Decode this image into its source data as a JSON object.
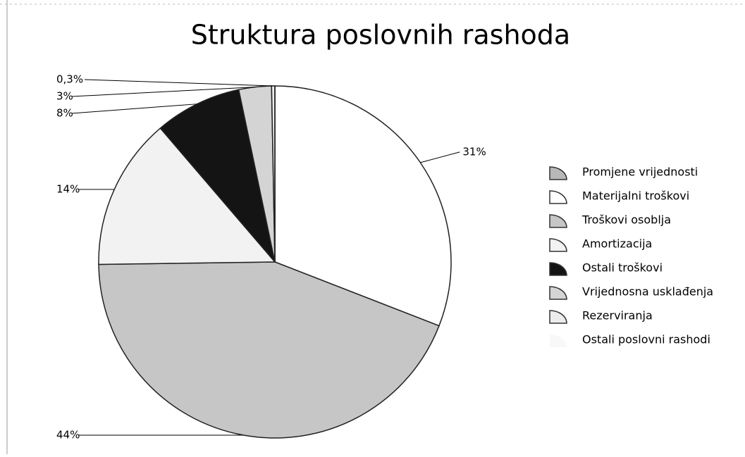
{
  "chart_data": {
    "type": "pie",
    "title": "Struktura poslovnih rashoda",
    "categories": [
      "Promjene vrijednosti",
      "Materijalni troškovi",
      "Troškovi osoblja",
      "Amortizacija",
      "Ostali troškovi",
      "Vrijednosna usklađenja",
      "Rezerviranja",
      "Ostali poslovni rashodi"
    ],
    "values": [
      0,
      31,
      44,
      14,
      8,
      3,
      0.3,
      0
    ],
    "value_labels": [
      null,
      "31%",
      "44%",
      "14%",
      "8%",
      "3%",
      "0,3%",
      null
    ],
    "colors": [
      "#b8b8b8",
      "#ffffff",
      "#c6c6c6",
      "#f2f2f2",
      "#141414",
      "#d4d4d4",
      "#ececec",
      "#f8f8f8"
    ],
    "legend": "right"
  }
}
